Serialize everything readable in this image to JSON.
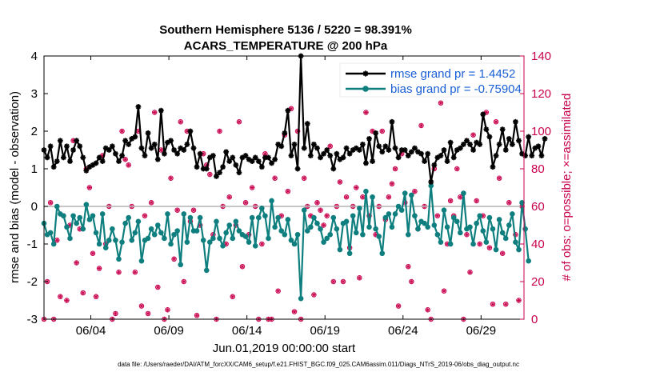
{
  "chart_data": {
    "type": "line",
    "title_line1": "Southern Hemisphere 5136 / 5220 = 98.391%",
    "title_line2": "ACARS_TEMPERATURE @ 200 hPa",
    "xlabel": "Jun.01,2019 00:00:00 start",
    "ylabel": "rmse and bias (model - observation)",
    "y2label": "# of obs: o=possible; ×=assimilated",
    "footer": "data file: /Users/raeder/DAI/ATM_forcXX/CAM6_setup/f.e21.FHIST_BGC.f09_025.CAM6assim.011/Diags_NTrS_2019-06/obs_diag_output.nc",
    "xlim": [
      0,
      30.75
    ],
    "ylim": [
      -3,
      4
    ],
    "y2lim": [
      0,
      140
    ],
    "x_ticks": [
      3,
      8,
      13,
      18,
      23,
      28
    ],
    "x_tick_labels": [
      "06/04",
      "06/09",
      "06/14",
      "06/19",
      "06/24",
      "06/29"
    ],
    "y_ticks": [
      -3,
      -2,
      -1,
      0,
      1,
      2,
      3,
      4
    ],
    "y_tick_labels": [
      "-3",
      "-2",
      "-1",
      "0",
      "1",
      "2",
      "3",
      "4"
    ],
    "y2_ticks": [
      0,
      20,
      40,
      60,
      80,
      100,
      120,
      140
    ],
    "y2_tick_labels": [
      "0",
      "20",
      "40",
      "60",
      "80",
      "100",
      "120",
      "140"
    ],
    "zero_line": 0,
    "legend_position": "top-right",
    "colors": {
      "rmse": "#000000",
      "bias": "#0e7e7e",
      "obs": "#c8004c",
      "zero": "#b4b4b4",
      "legend_text": "#1a5fd6"
    },
    "series": [
      {
        "name": "rmse grand pr = 1.4452",
        "values": [
          1.5,
          1.3,
          1.6,
          1.05,
          1.2,
          1.75,
          1.3,
          1.6,
          1.2,
          1.5,
          1.75,
          1.6,
          1.3,
          0.95,
          1.05,
          1.1,
          1.15,
          1.3,
          1.2,
          1.55,
          1.5,
          1.6,
          1.4,
          1.2,
          1.35,
          1.75,
          1.65,
          1.8,
          1.85,
          2.65,
          1.55,
          1.35,
          1.95,
          1.55,
          1.65,
          1.25,
          2.55,
          1.4,
          1.7,
          1.75,
          1.5,
          1.4,
          1.55,
          1.5,
          1.65,
          2.0,
          1.55,
          1.05,
          1.4,
          1.0,
          1.0,
          1.3,
          1.35,
          0.8,
          0.9,
          1.05,
          1.45,
          1.2,
          1.3,
          1.1,
          0.9,
          1.3,
          1.35,
          1.25,
          1.2,
          1.3,
          1.2,
          1.05,
          1.3,
          1.3,
          1.15,
          1.25,
          1.65,
          1.6,
          1.95,
          2.55,
          1.35,
          1.65,
          1.0,
          4.0,
          1.55,
          2.2,
          1.35,
          1.65,
          1.55,
          1.3,
          1.4,
          1.5,
          1.35,
          1.0,
          1.4,
          1.25,
          1.3,
          1.55,
          1.4,
          1.5,
          1.55,
          1.5,
          1.65,
          1.15,
          1.8,
          1.2,
          1.95,
          1.6,
          1.45,
          1.6,
          1.5,
          2.25,
          1.55,
          1.3,
          1.5,
          1.5,
          1.35,
          1.45,
          1.55,
          1.45,
          1.4,
          1.2,
          1.4,
          0.65,
          1.1,
          1.3,
          1.35,
          1.5,
          1.2,
          1.7,
          1.3,
          1.5,
          1.55,
          1.65,
          1.75,
          1.65,
          1.5,
          1.7,
          1.65,
          2.45,
          2.05,
          1.85,
          1.05,
          1.35,
          1.65,
          2.05,
          1.5,
          1.8,
          1.65,
          2.25,
          1.75,
          1.4,
          1.35,
          1.85,
          1.35,
          1.55,
          1.6,
          1.35,
          1.8
        ]
      },
      {
        "name": "bias grand pr = -0.75904",
        "values": [
          -0.45,
          -0.75,
          -0.7,
          -1.0,
          0.0,
          -0.2,
          -0.25,
          -0.55,
          -0.85,
          -0.25,
          -0.45,
          -0.3,
          -0.6,
          0.05,
          -0.35,
          -0.25,
          -0.7,
          -1.0,
          -0.2,
          -1.1,
          -0.9,
          -0.6,
          -0.9,
          -1.4,
          -0.95,
          -0.45,
          -0.3,
          -0.9,
          -0.7,
          -0.4,
          -1.45,
          -0.9,
          -0.85,
          -0.6,
          -0.75,
          -0.5,
          -0.7,
          -0.85,
          -0.2,
          -1.0,
          -0.75,
          -0.65,
          -1.55,
          -0.2,
          -0.95,
          -0.3,
          -0.65,
          -0.65,
          -0.3,
          -0.9,
          -1.7,
          -0.95,
          -0.85,
          -0.4,
          -0.85,
          -1.05,
          -0.7,
          -0.5,
          -0.85,
          -0.4,
          -0.65,
          -0.75,
          -0.8,
          -0.95,
          -0.3,
          -1.05,
          -0.3,
          -0.05,
          -0.25,
          -0.85,
          0.15,
          -0.55,
          -0.3,
          -0.65,
          -0.75,
          -0.35,
          -0.9,
          -1.0,
          -0.75,
          -2.45,
          -0.1,
          -0.65,
          -0.55,
          -0.3,
          -0.45,
          -0.6,
          -0.95,
          -0.85,
          -0.75,
          -0.3,
          -0.6,
          -1.15,
          -0.45,
          -0.4,
          -1.25,
          -0.25,
          -0.7,
          -0.05,
          -0.75,
          0.4,
          -0.55,
          0.25,
          -0.6,
          -0.8,
          -1.25,
          -0.3,
          -0.2,
          -0.55,
          -0.2,
          0.0,
          -0.1,
          0.35,
          -0.75,
          0.3,
          -0.25,
          -0.6,
          -0.4,
          -0.45,
          -0.55,
          0.55,
          -0.5,
          -0.75,
          -0.95,
          -0.1,
          -0.55,
          -1.0,
          -0.3,
          -0.4,
          -0.7,
          0.35,
          -0.6,
          -0.55,
          -1.0,
          -0.45,
          -0.25,
          -0.65,
          -0.95,
          -0.3,
          -0.6,
          -1.15,
          -0.35,
          -0.7,
          -0.85,
          -0.5,
          -0.2,
          -0.95,
          -1.15,
          0.1,
          -0.6,
          -1.45
        ]
      },
      {
        "name": "# obs possible (o)",
        "axis": "right",
        "values": [
          0,
          20,
          62,
          0,
          42,
          12,
          55,
          10,
          50,
          95,
          30,
          48,
          14,
          80,
          70,
          35,
          12,
          27,
          87,
          40,
          60,
          0,
          3,
          25,
          100,
          85,
          82,
          60,
          25,
          100,
          7,
          55,
          3,
          62,
          110,
          17,
          90,
          0,
          5,
          75,
          32,
          58,
          105,
          20,
          100,
          52,
          58,
          2,
          50,
          88,
          82,
          77,
          45,
          0,
          100,
          60,
          40,
          65,
          12,
          50,
          105,
          28,
          62,
          45,
          70,
          60,
          0,
          40,
          88,
          0,
          0,
          75,
          15,
          55,
          98,
          68,
          112,
          4,
          100,
          0,
          75,
          60,
          55,
          13,
          62,
          58,
          50,
          55,
          92,
          20,
          60,
          73,
          20,
          65,
          38,
          60,
          70,
          22,
          65,
          110,
          55,
          100,
          45,
          60,
          100,
          53,
          65,
          72,
          80,
          7,
          88,
          62,
          28,
          20,
          68,
          48,
          103,
          60,
          5,
          0,
          80,
          55,
          115,
          15,
          40,
          63,
          55,
          80,
          65,
          0,
          45,
          25,
          98,
          63,
          40,
          55,
          110,
          38,
          8,
          105,
          75,
          35,
          8,
          62,
          132,
          45,
          10,
          60
        ]
      },
      {
        "name": "# obs assimilated (×)",
        "axis": "right",
        "values": [
          0,
          20,
          62,
          0,
          42,
          12,
          55,
          10,
          50,
          95,
          30,
          48,
          14,
          80,
          70,
          35,
          12,
          27,
          87,
          40,
          60,
          0,
          3,
          25,
          100,
          85,
          82,
          60,
          25,
          100,
          7,
          55,
          3,
          62,
          110,
          17,
          90,
          0,
          5,
          75,
          32,
          58,
          105,
          20,
          100,
          52,
          58,
          2,
          50,
          88,
          82,
          77,
          45,
          0,
          100,
          60,
          40,
          65,
          12,
          50,
          105,
          28,
          62,
          45,
          70,
          60,
          0,
          40,
          88,
          0,
          0,
          75,
          15,
          55,
          98,
          68,
          112,
          4,
          100,
          0,
          75,
          60,
          55,
          13,
          62,
          58,
          50,
          55,
          92,
          20,
          60,
          73,
          20,
          65,
          38,
          60,
          70,
          22,
          65,
          110,
          55,
          100,
          45,
          60,
          100,
          53,
          65,
          72,
          80,
          7,
          88,
          62,
          28,
          20,
          68,
          48,
          103,
          60,
          5,
          0,
          80,
          55,
          115,
          15,
          40,
          63,
          55,
          80,
          65,
          0,
          45,
          25,
          98,
          63,
          40,
          55,
          110,
          38,
          8,
          105,
          75,
          35,
          8,
          62,
          132,
          45,
          10,
          60
        ]
      }
    ]
  }
}
